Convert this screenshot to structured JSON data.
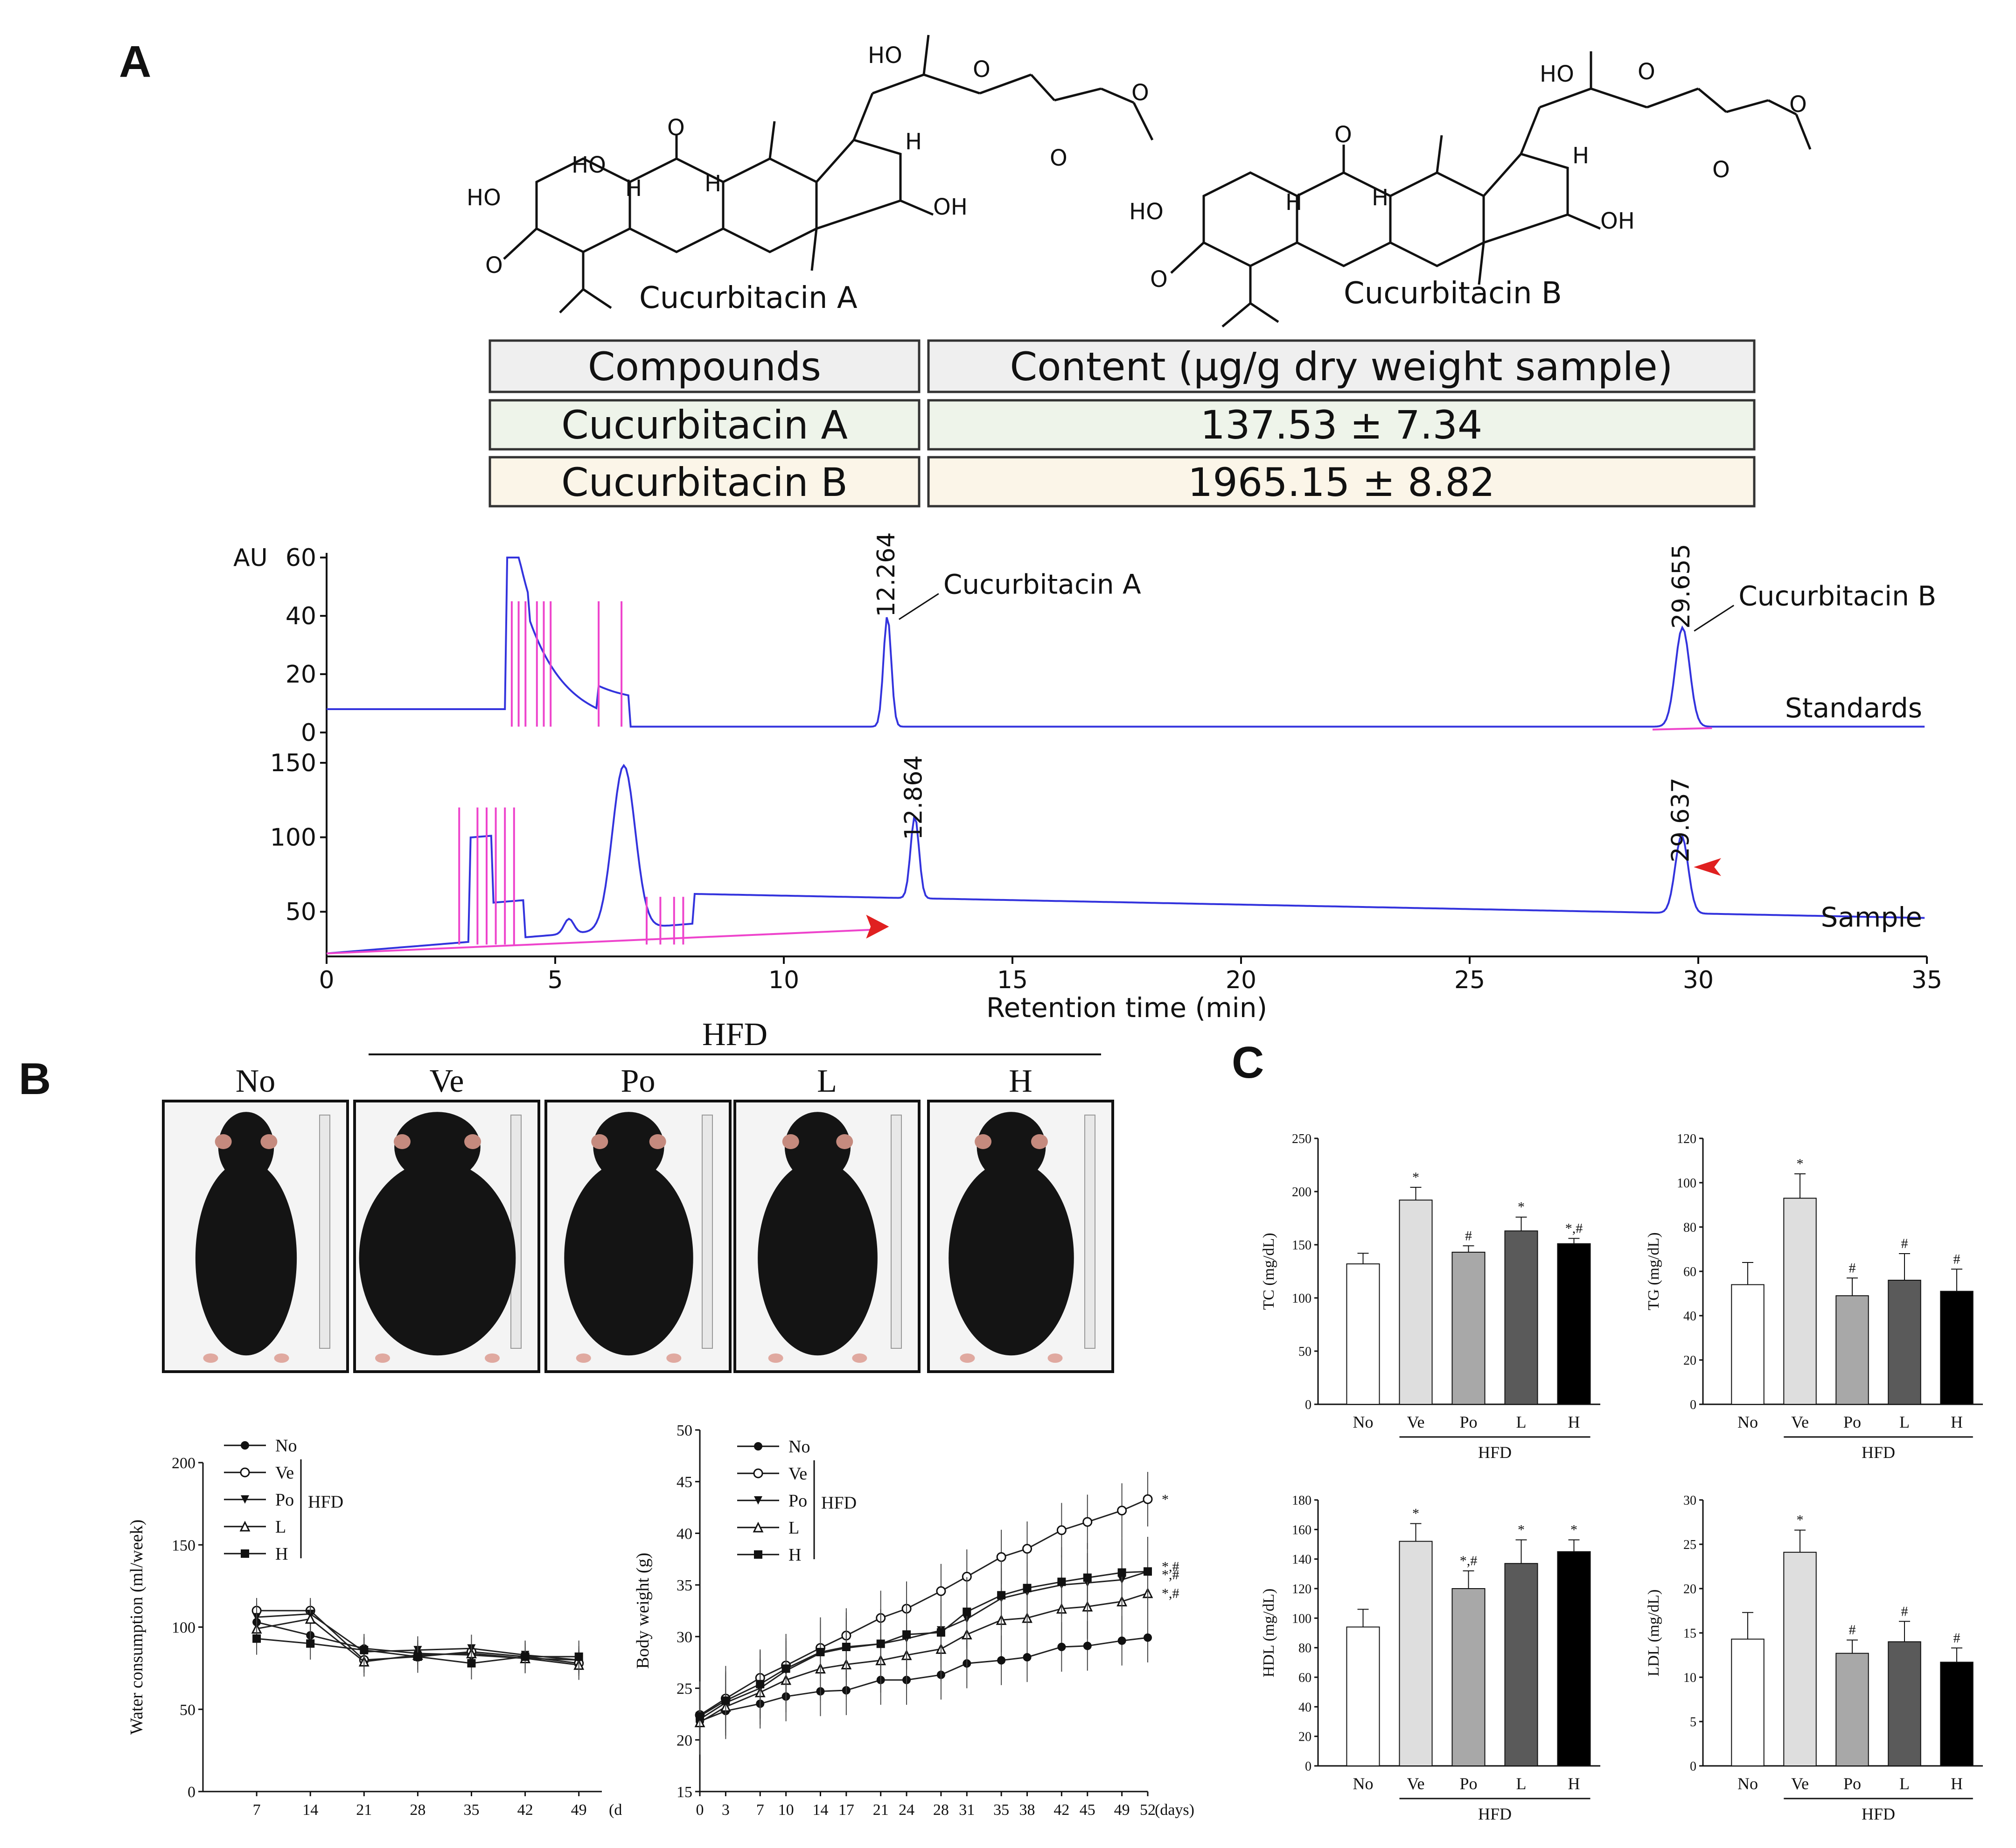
{
  "panel_a": {
    "letter": "A",
    "compound_a_name": "Cucurbitacin A",
    "compound_b_name": "Cucurbitacin B",
    "chem_labels": {
      "ho": "HO",
      "oh": "OH",
      "h": "H",
      "o": "O"
    },
    "table": {
      "header": [
        "Compounds",
        "Content (μg/g dry weight sample)"
      ],
      "rows": [
        {
          "compound": "Cucurbitacin A",
          "content": "137.53 ± 7.34",
          "color": "#eef4ea"
        },
        {
          "compound": "Cucurbitacin B",
          "content": "1965.15 ± 8.82",
          "color": "#fbf5e8"
        }
      ],
      "header_color": "#efefef"
    }
  },
  "panel_b": {
    "letter": "B",
    "hfd_label": "HFD",
    "groups": [
      "No",
      "Ve",
      "Po",
      "L",
      "H"
    ]
  },
  "panel_c": {
    "letter": "C"
  },
  "chart_data": [
    {
      "type": "line",
      "id": "hplc-standards",
      "title": "",
      "ylabel": "AU",
      "xlabel": "Retention time (min)",
      "xlim": [
        0,
        35
      ],
      "ylim": [
        0,
        60
      ],
      "yticks": [
        0,
        20,
        40,
        60
      ],
      "trace_label": "Standards",
      "peaks": [
        {
          "rt": 12.264,
          "height": 38,
          "label": "12.264",
          "annotation": "Cucurbitacin A"
        },
        {
          "rt": 29.655,
          "height": 34,
          "label": "29.655",
          "annotation": "Cucurbitacin B"
        }
      ],
      "series_color": "#3333dd",
      "integration_color": "#ee44cc"
    },
    {
      "type": "line",
      "id": "hplc-sample",
      "title": "",
      "xlabel": "Retention time (min)",
      "xlim": [
        0,
        35
      ],
      "xticks": [
        0,
        5,
        10,
        15,
        20,
        25,
        30,
        35
      ],
      "ylim": [
        20,
        150
      ],
      "yticks": [
        50,
        100,
        150
      ],
      "trace_label": "Sample",
      "peaks": [
        {
          "rt": 12.864,
          "height": 95,
          "label": "12.864"
        },
        {
          "rt": 29.637,
          "height": 80,
          "label": "29.637"
        }
      ],
      "series_color": "#3333dd",
      "integration_color": "#ee44cc",
      "marker_color": "#e02020"
    },
    {
      "type": "line",
      "id": "water-consumption",
      "title": "",
      "xlabel": "(d",
      "ylabel": "Water consumption (ml/week)",
      "x": [
        7,
        14,
        21,
        28,
        35,
        42,
        49
      ],
      "xlim": [
        0,
        52
      ],
      "ylim": [
        0,
        200
      ],
      "yticks": [
        0,
        50,
        100,
        150,
        200
      ],
      "legend_group_label": "HFD",
      "series": [
        {
          "name": "No",
          "marker": "filled-circle",
          "values": [
            103,
            95,
            87,
            84,
            83,
            81,
            80
          ]
        },
        {
          "name": "Ve",
          "marker": "open-circle",
          "values": [
            110,
            110,
            80,
            82,
            85,
            82,
            78
          ]
        },
        {
          "name": "Po",
          "marker": "filled-triangle-down",
          "values": [
            106,
            108,
            85,
            86,
            87,
            83,
            80
          ]
        },
        {
          "name": "L",
          "marker": "open-triangle-up",
          "values": [
            99,
            105,
            79,
            83,
            84,
            81,
            77
          ]
        },
        {
          "name": "H",
          "marker": "filled-square",
          "values": [
            93,
            90,
            86,
            82,
            78,
            82,
            82
          ]
        }
      ]
    },
    {
      "type": "line",
      "id": "body-weight",
      "title": "",
      "xlabel": "(days)",
      "ylabel": "Body weight (g)",
      "x": [
        0,
        3,
        7,
        10,
        14,
        17,
        21,
        24,
        28,
        31,
        35,
        38,
        42,
        45,
        49,
        52
      ],
      "xlim": [
        0,
        52
      ],
      "ylim": [
        15,
        50
      ],
      "yticks": [
        15,
        20,
        25,
        30,
        35,
        40,
        45,
        50
      ],
      "legend_group_label": "HFD",
      "series": [
        {
          "name": "No",
          "marker": "filled-circle",
          "values": [
            21.8,
            22.8,
            23.5,
            24.2,
            24.7,
            24.8,
            25.8,
            25.8,
            26.3,
            27.4,
            27.7,
            28.0,
            29.0,
            29.1,
            29.6,
            29.9
          ]
        },
        {
          "name": "Ve",
          "marker": "open-circle",
          "values": [
            22.4,
            24.0,
            26.0,
            27.2,
            28.9,
            30.1,
            31.8,
            32.7,
            34.4,
            35.8,
            37.7,
            38.5,
            40.3,
            41.1,
            42.2,
            43.3
          ]
        },
        {
          "name": "Po",
          "marker": "filled-triangle-down",
          "values": [
            22.0,
            23.6,
            25.0,
            26.7,
            28.4,
            28.9,
            29.3,
            29.8,
            30.6,
            31.7,
            33.7,
            34.3,
            35.0,
            35.2,
            35.5,
            36.3
          ]
        },
        {
          "name": "L",
          "marker": "open-triangle-up",
          "values": [
            21.7,
            23.2,
            24.6,
            25.8,
            26.9,
            27.3,
            27.7,
            28.2,
            28.8,
            30.2,
            31.6,
            31.8,
            32.7,
            32.9,
            33.4,
            34.2
          ]
        },
        {
          "name": "H",
          "marker": "filled-square",
          "values": [
            22.3,
            23.8,
            25.4,
            26.9,
            28.5,
            29.0,
            29.3,
            30.2,
            30.4,
            32.4,
            34.0,
            34.7,
            35.3,
            35.7,
            36.2,
            36.3
          ]
        }
      ],
      "annotations": [
        "*",
        "*,#",
        "*,#",
        "*,#"
      ]
    },
    {
      "type": "bar",
      "id": "tc",
      "title": "",
      "ylabel": "TC (mg/dL)",
      "categories": [
        "No",
        "Ve",
        "Po",
        "L",
        "H"
      ],
      "values": [
        132,
        192,
        143,
        163,
        151
      ],
      "errors": [
        10,
        12,
        6,
        13,
        5
      ],
      "sig": [
        "",
        "*",
        "#",
        "*",
        "*,#"
      ],
      "ylim": [
        0,
        250
      ],
      "yticks": [
        0,
        50,
        100,
        150,
        200,
        250
      ],
      "group_label": "HFD",
      "colors": [
        "#ffffff",
        "#dedede",
        "#a8a8a8",
        "#5a5a5a",
        "#000000"
      ]
    },
    {
      "type": "bar",
      "id": "tg",
      "title": "",
      "ylabel": "TG (mg/dL)",
      "categories": [
        "No",
        "Ve",
        "Po",
        "L",
        "H"
      ],
      "values": [
        54,
        93,
        49,
        56,
        51
      ],
      "errors": [
        10,
        11,
        8,
        12,
        10
      ],
      "sig": [
        "",
        "*",
        "#",
        "#",
        "#"
      ],
      "ylim": [
        0,
        120
      ],
      "yticks": [
        0,
        20,
        40,
        60,
        80,
        100,
        120
      ],
      "group_label": "HFD",
      "colors": [
        "#ffffff",
        "#dedede",
        "#a8a8a8",
        "#5a5a5a",
        "#000000"
      ]
    },
    {
      "type": "bar",
      "id": "hdl",
      "title": "",
      "ylabel": "HDL (mg/dL)",
      "categories": [
        "No",
        "Ve",
        "Po",
        "L",
        "H"
      ],
      "values": [
        94,
        152,
        120,
        137,
        145
      ],
      "errors": [
        12,
        12,
        12,
        16,
        8
      ],
      "sig": [
        "",
        "*",
        "*,#",
        "*",
        "*"
      ],
      "ylim": [
        0,
        180
      ],
      "yticks": [
        0,
        20,
        40,
        60,
        80,
        100,
        120,
        140,
        160,
        180
      ],
      "group_label": "HFD",
      "colors": [
        "#ffffff",
        "#dedede",
        "#a8a8a8",
        "#5a5a5a",
        "#000000"
      ]
    },
    {
      "type": "bar",
      "id": "ldl",
      "title": "",
      "ylabel": "LDL (mg/dL)",
      "categories": [
        "No",
        "Ve",
        "Po",
        "L",
        "H"
      ],
      "values": [
        14.3,
        24.1,
        12.7,
        14.0,
        11.7
      ],
      "errors": [
        3.0,
        2.5,
        1.5,
        2.3,
        1.6
      ],
      "sig": [
        "",
        "*",
        "#",
        "#",
        "#"
      ],
      "ylim": [
        0,
        30
      ],
      "yticks": [
        0,
        5,
        10,
        15,
        20,
        25,
        30
      ],
      "group_label": "HFD",
      "colors": [
        "#ffffff",
        "#dedede",
        "#a8a8a8",
        "#5a5a5a",
        "#000000"
      ]
    }
  ]
}
